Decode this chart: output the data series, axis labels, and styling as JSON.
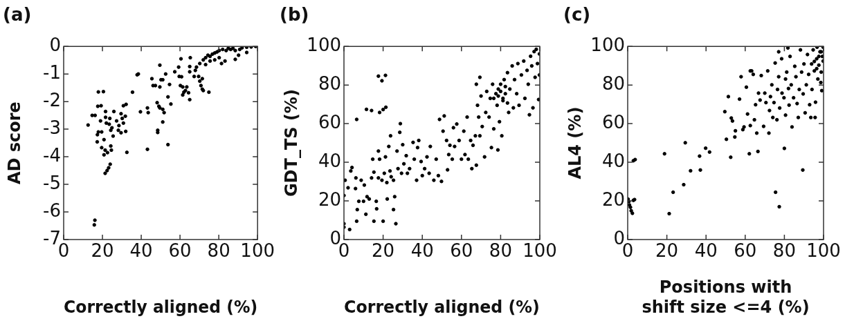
{
  "chart_data": [
    {
      "type": "scatter",
      "title": "(a)",
      "xlabel": "Correctly aligned (%)",
      "ylabel": "AD score",
      "color": "#000000",
      "marker": "circle",
      "xlim": [
        0,
        100
      ],
      "ylim": [
        -7,
        0
      ],
      "xticks": [
        0,
        20,
        40,
        60,
        80,
        100
      ],
      "yticks": [
        -7,
        -6,
        -5,
        -4,
        -3,
        -2,
        -1,
        0
      ],
      "x": [
        12.6,
        14.7,
        16.2,
        17.9,
        20.5,
        17.6,
        19.3,
        17.4,
        17.3,
        17.9,
        19,
        19.6,
        19.6,
        20.8,
        20.8,
        21.4,
        21.4,
        22.4,
        23.2,
        24,
        22.6,
        21.6,
        21.6,
        22,
        23.5,
        23.8,
        24.3,
        24.9,
        25.5,
        24.3,
        24.6,
        25.9,
        27.3,
        28.5,
        28.2,
        29.6,
        30.2,
        30.8,
        29.6,
        30.8,
        32.2,
        31.8,
        32,
        32.6,
        16.1,
        15.8,
        37.9,
        38.5,
        35.5,
        39.6,
        43.2,
        43.6,
        43.2,
        45.5,
        46.1,
        47.3,
        48.5,
        48.5,
        48.2,
        49.1,
        49.6,
        49.6,
        49.6,
        50.2,
        51.1,
        51.1,
        51.8,
        51.1,
        52.6,
        53.8,
        53.8,
        54.6,
        55.3,
        57.3,
        59.3,
        59.6,
        60.8,
        60.2,
        61.4,
        60.5,
        61.4,
        62,
        62.8,
        63.5,
        64.4,
        65,
        65.3,
        65,
        65,
        67.3,
        67.9,
        68.5,
        69.6,
        70.2,
        70.8,
        71.5,
        72,
        74.9,
        71.5,
        70.2,
        72,
        73.2,
        74.4,
        75.5,
        76.7,
        77.9,
        79.1,
        80.2,
        82,
        83.8,
        84.9,
        86.1,
        87.3,
        88.5,
        90.8,
        92,
        94.4,
        96.7,
        99,
        81.4,
        83.2,
        88.5,
        90.2,
        94.4,
        73.2,
        75.5,
        77.9,
        80.2
      ],
      "values": [
        -2.85,
        -2.5,
        -2.5,
        -1.65,
        -1.64,
        -2.17,
        -2.15,
        -3.2,
        -3.46,
        -3.1,
        -2.7,
        -3.1,
        -3.67,
        -3.38,
        -3.93,
        -3.76,
        -4.6,
        -4.5,
        -4.4,
        -4.27,
        -3.85,
        -2.57,
        -2.36,
        -2.78,
        -2.82,
        -2.61,
        -3.04,
        -2.95,
        -3.25,
        -3.61,
        -3.76,
        -2.36,
        -2.7,
        -2.87,
        -3.04,
        -2.44,
        -2.61,
        -2.78,
        -3.13,
        -2.15,
        -2.1,
        -2.53,
        -3.08,
        -3.84,
        -6.3,
        -6.47,
        -1.03,
        -1,
        -1.66,
        -2.37,
        -2.23,
        -2.4,
        -3.73,
        -1.17,
        -1.42,
        -1.42,
        -3.12,
        -3.04,
        -2.04,
        -2.17,
        -2.23,
        -0.68,
        -1.47,
        -1.21,
        -1.21,
        -2.28,
        -2.4,
        -2.74,
        -1,
        -3.56,
        -1.83,
        -1.38,
        -2.09,
        -0.92,
        -0.75,
        -1.09,
        -1.1,
        -1.42,
        -1.47,
        -0.45,
        -1.76,
        -1.66,
        -1.6,
        -1.47,
        -1.68,
        -1.93,
        -0.41,
        -0.73,
        -0.92,
        -1.09,
        -0.87,
        -0.75,
        -1.09,
        -1.26,
        -1.42,
        -1.55,
        -1.6,
        -1.66,
        -1.17,
        -0.62,
        -0.49,
        -0.41,
        -0.32,
        -0.36,
        -0.28,
        -0.24,
        -0.2,
        -0.15,
        -0.11,
        -0.15,
        -0.07,
        -0.11,
        -0.07,
        -0.15,
        -0.11,
        -0.05,
        -0.03,
        -0.02,
        0,
        -0.62,
        -0.53,
        -0.47,
        -0.32,
        -0.22,
        -0.66,
        -0.53,
        -0.49,
        -0.41
      ]
    },
    {
      "type": "scatter",
      "title": "(b)",
      "xlabel": "Correctly aligned (%)",
      "ylabel": "GDT_TS (%)",
      "color": "#000000",
      "marker": "circle",
      "xlim": [
        0,
        100
      ],
      "ylim": [
        0,
        100
      ],
      "xticks": [
        0,
        20,
        40,
        60,
        80,
        100
      ],
      "yticks": [
        0,
        20,
        40,
        60,
        80,
        100
      ],
      "x": [
        0,
        0,
        0,
        0.6,
        2.9,
        2.1,
        3.5,
        4.1,
        6.5,
        5.9,
        6.1,
        6.5,
        6.8,
        7.6,
        8.8,
        10.4,
        10,
        11.2,
        11.5,
        14.1,
        11.8,
        12.9,
        15.3,
        14.1,
        15.3,
        14.7,
        16.7,
        16.5,
        17.6,
        19.4,
        21.2,
        18.2,
        20,
        21.4,
        17.6,
        18.2,
        17.6,
        19.4,
        20,
        20.6,
        21.2,
        21.9,
        22.1,
        23.8,
        22.9,
        23.5,
        24.1,
        25.3,
        25.3,
        25.9,
        26.5,
        27.1,
        27.6,
        28.8,
        28.5,
        29.4,
        30,
        30.6,
        31.8,
        32.4,
        33.5,
        35.3,
        35.9,
        37.1,
        37.6,
        38.2,
        39.4,
        40,
        41.2,
        42.4,
        43.5,
        44.1,
        45.9,
        47.1,
        48.2,
        48.8,
        49.8,
        51.2,
        50.6,
        52.4,
        52.9,
        53.5,
        54.1,
        55.3,
        55.9,
        56.5,
        57.6,
        58.8,
        60,
        61.2,
        61.8,
        62.9,
        63.5,
        64.7,
        65.3,
        65.9,
        67.1,
        67.6,
        67.6,
        68.2,
        68.8,
        69.4,
        69.4,
        70,
        70.6,
        71.8,
        72.4,
        72.9,
        74.1,
        74.7,
        75.3,
        75.9,
        76.5,
        77.6,
        78.2,
        78.6,
        78.8,
        79.4,
        80,
        80.6,
        81.2,
        81.8,
        82.4,
        83.5,
        84.1,
        84.7,
        85.9,
        86.5,
        87.1,
        88.2,
        88.8,
        89.4,
        90.6,
        91.8,
        92.4,
        93.5,
        94.1,
        94.7,
        95.3,
        95.9,
        96.5,
        97.1,
        97.6,
        98.2,
        98.8,
        99.4,
        99.8,
        99.8,
        76.5,
        78.8,
        80,
        81.2,
        82.4,
        83.5
      ],
      "values": [
        8.2,
        6.4,
        22.8,
        30.7,
        5.2,
        26.8,
        35.5,
        37.3,
        62.2,
        26.4,
        31.9,
        9.5,
        15.5,
        19.8,
        30.7,
        28.2,
        19.8,
        13.1,
        67.4,
        66.8,
        22.2,
        21,
        9.5,
        31.9,
        34.9,
        41.6,
        15.9,
        19.8,
        84.6,
        82.2,
        85,
        65.8,
        67.3,
        68.5,
        45.8,
        41.6,
        31.9,
        30.7,
        9.5,
        34.3,
        42.8,
        29.5,
        21,
        53.7,
        48.2,
        35.5,
        32.5,
        30.7,
        15.5,
        22.2,
        8.2,
        45.8,
        36.7,
        60,
        55.5,
        34.3,
        49.1,
        39.2,
        43.4,
        34.3,
        36.7,
        50.3,
        41.6,
        30.7,
        47.6,
        51.3,
        40.4,
        33.1,
        36.7,
        42.8,
        34.3,
        48.2,
        30.7,
        41.6,
        33.1,
        62.2,
        30.1,
        64,
        56.1,
        51.3,
        36.1,
        44,
        48.8,
        41.6,
        57.9,
        48.2,
        59.8,
        51.3,
        41.6,
        56.1,
        44,
        63.4,
        41.6,
        51.3,
        36.7,
        48.8,
        53.7,
        38.5,
        80.4,
        69.5,
        63.4,
        84,
        53.7,
        74.3,
        58.5,
        42.8,
        65.8,
        76.7,
        63.4,
        73.1,
        47.6,
        80.4,
        57.3,
        75.5,
        69.5,
        46.4,
        77.9,
        61,
        80.4,
        53.7,
        71.9,
        82.8,
        75.5,
        86.4,
        65.8,
        77.9,
        89.9,
        68.2,
        82.8,
        75.5,
        91.1,
        69.5,
        85.2,
        92.4,
        73.1,
        87.6,
        80.4,
        64.6,
        94.9,
        89.9,
        68.2,
        97.3,
        84,
        98.5,
        91.1,
        72.5,
        85.2,
        96.1,
        73.1,
        74.3,
        76.7,
        73.1,
        79.2,
        70.7
      ]
    },
    {
      "type": "scatter",
      "title": "(c)",
      "xlabel": "Positions with shift size <=4 (%)",
      "ylabel": "AL4 (%)",
      "color": "#000000",
      "marker": "circle",
      "xlim": [
        0,
        100
      ],
      "ylim": [
        0,
        100
      ],
      "xticks": [
        0,
        20,
        40,
        60,
        80,
        100
      ],
      "yticks": [
        0,
        20,
        40,
        60,
        80,
        100
      ],
      "x": [
        0.2,
        0.6,
        0.9,
        1.4,
        1.8,
        2.4,
        2.9,
        3.5,
        3.8,
        2.9,
        18.8,
        21.2,
        23.2,
        28.6,
        29.4,
        32.1,
        36.7,
        37.1,
        39.8,
        41.8,
        49.6,
        50.4,
        51.4,
        52.6,
        52.9,
        53.5,
        54.7,
        55,
        57.1,
        57.9,
        58.8,
        59.4,
        60.6,
        61.2,
        62.1,
        62.6,
        62.6,
        63.3,
        64.1,
        64.7,
        65.3,
        65.9,
        66.5,
        66.8,
        67.6,
        68.2,
        69.4,
        70,
        70.6,
        71.5,
        72.1,
        72.4,
        72.9,
        73.6,
        74.1,
        74.7,
        75.3,
        75.5,
        76.2,
        76.5,
        77.1,
        77.1,
        77.4,
        77.6,
        78.6,
        78.8,
        79.8,
        80,
        80.6,
        80.6,
        81.2,
        81.8,
        82.1,
        82.4,
        82.9,
        83.5,
        83.9,
        84.7,
        85.3,
        85.9,
        86.5,
        87.1,
        87.6,
        88.2,
        88.8,
        89.4,
        89.6,
        90,
        90.6,
        91.2,
        91.8,
        92.4,
        92.9,
        93.5,
        93.9,
        94.1,
        94.7,
        95.3,
        95.7,
        95.9,
        96.5,
        96.7,
        97.1,
        97.6,
        98.2,
        98.6,
        98.8,
        99.1,
        99.4,
        99.8,
        99.8,
        95.3,
        97.6,
        96.5,
        98.8
      ],
      "values": [
        20.9,
        19.7,
        17.9,
        16.7,
        14.9,
        13.6,
        20.3,
        20.7,
        41.4,
        40.8,
        44.4,
        13.4,
        24.5,
        28.4,
        50.1,
        35.6,
        43.2,
        36,
        47.3,
        45.3,
        66.2,
        51.9,
        74,
        42.6,
        62.9,
        61.4,
        53.1,
        56.3,
        72.7,
        84.3,
        56.9,
        58.3,
        78.9,
        65,
        44.4,
        59,
        87.3,
        87.3,
        85.5,
        62,
        69.8,
        55.1,
        45.6,
        75.8,
        72.2,
        84.9,
        58.6,
        75.8,
        70.9,
        87.3,
        55.1,
        66.8,
        74,
        80.1,
        63.2,
        70.9,
        91.4,
        24.5,
        62,
        77.7,
        97.2,
        84.3,
        17,
        68.1,
        93.6,
        75.8,
        73.4,
        47.2,
        64.4,
        83.1,
        86.7,
        99.2,
        78.2,
        69.6,
        94.8,
        80.1,
        58.3,
        73.4,
        89.7,
        84.3,
        70.4,
        63.2,
        77.7,
        98.2,
        86.7,
        36,
        75.4,
        90.9,
        65.6,
        80.1,
        95.8,
        85.5,
        69.8,
        63.2,
        90.9,
        77.7,
        98.2,
        87.3,
        63.2,
        71.1,
        93.6,
        99.6,
        83.1,
        90.3,
        97.2,
        81.3,
        86.7,
        77.1,
        94.8,
        92.4,
        99.6,
        92.2,
        94.8,
        88.5,
        97.2
      ]
    }
  ]
}
